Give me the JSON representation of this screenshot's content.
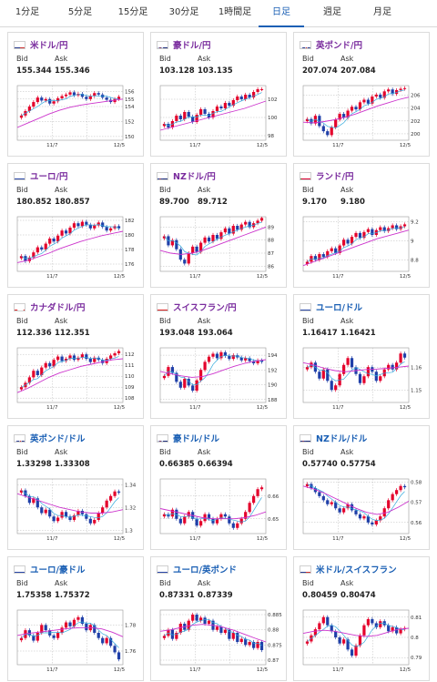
{
  "tabs": [
    {
      "label": "1分足",
      "active": false
    },
    {
      "label": "5分足",
      "active": false
    },
    {
      "label": "15分足",
      "active": false
    },
    {
      "label": "30分足",
      "active": false
    },
    {
      "label": "1時間足",
      "active": false
    },
    {
      "label": "日足",
      "active": true
    },
    {
      "label": "週足",
      "active": false
    },
    {
      "label": "月足",
      "active": false
    }
  ],
  "labels": {
    "bid": "Bid",
    "ask": "Ask"
  },
  "colors": {
    "accent": "#1a5fb4",
    "yen_pair_title": "#7a2c9e",
    "up_candle": "#e4002b",
    "down_candle": "#1f3fa8",
    "long_ma": "#cc33cc",
    "short_ma": "#33aadd"
  },
  "cards": [
    {
      "pair": "米ドル/円",
      "flag": "us",
      "bid": "155.344",
      "ask": "155.346",
      "chart_data": {
        "type": "candlestick",
        "x_labels": [
          "11/7",
          "12/5"
        ],
        "y_ticks": [
          "156",
          "155",
          "154",
          "152",
          "150"
        ],
        "ylim": [
          149.5,
          156.8
        ],
        "closes": [
          152.8,
          153.4,
          154.0,
          154.6,
          155.2,
          154.8,
          155.0,
          154.4,
          154.7,
          155.1,
          155.4,
          155.6,
          155.9,
          155.5,
          155.7,
          155.3,
          155.0,
          155.4,
          155.8,
          155.6,
          155.2,
          154.9,
          154.6,
          155.0,
          155.3
        ],
        "long_ma": [
          151.2,
          151.8,
          152.4,
          153.0,
          153.5,
          153.9,
          154.2,
          154.4,
          154.6,
          154.8,
          155.0
        ]
      }
    },
    {
      "pair": "豪ドル/円",
      "flag": "au",
      "bid": "103.128",
      "ask": "103.135",
      "chart_data": {
        "type": "candlestick",
        "x_labels": [
          "11/7",
          "12/5"
        ],
        "y_ticks": [
          "102",
          "100",
          "98"
        ],
        "ylim": [
          97.5,
          103.5
        ],
        "closes": [
          99.3,
          98.9,
          99.6,
          100.2,
          99.8,
          100.6,
          100.1,
          99.5,
          100.3,
          100.9,
          100.4,
          100.0,
          100.7,
          101.2,
          101.0,
          101.6,
          101.3,
          101.9,
          102.3,
          102.0,
          102.5,
          102.2,
          102.8,
          103.1,
          103.1
        ],
        "long_ma": [
          98.6,
          98.9,
          99.2,
          99.5,
          99.8,
          100.1,
          100.4,
          100.7,
          101.0,
          101.4,
          101.8
        ]
      }
    },
    {
      "pair": "英ポンド/円",
      "flag": "gb",
      "bid": "207.074",
      "ask": "207.084",
      "chart_data": {
        "type": "candlestick",
        "x_labels": [
          "11/7",
          "12/5"
        ],
        "y_ticks": [
          "206",
          "204",
          "202",
          "200"
        ],
        "ylim": [
          199.0,
          207.5
        ],
        "closes": [
          202.3,
          201.6,
          202.8,
          201.2,
          200.4,
          199.8,
          201.0,
          202.2,
          203.1,
          202.5,
          203.6,
          204.2,
          203.8,
          204.9,
          205.3,
          204.7,
          205.8,
          206.1,
          205.6,
          206.6,
          206.9,
          206.2,
          206.8,
          207.0,
          207.1
        ],
        "long_ma": [
          201.8,
          201.7,
          201.9,
          202.2,
          202.6,
          203.1,
          203.7,
          204.3,
          204.8,
          205.3,
          205.7
        ]
      }
    },
    {
      "pair": "ユーロ/円",
      "flag": "eu",
      "bid": "180.852",
      "ask": "180.857",
      "chart_data": {
        "type": "candlestick",
        "x_labels": [
          "11/7",
          "12/5"
        ],
        "y_ticks": [
          "182",
          "180",
          "178",
          "176"
        ],
        "ylim": [
          175.0,
          182.5
        ],
        "closes": [
          177.1,
          176.4,
          176.9,
          177.6,
          178.3,
          178.0,
          178.8,
          179.5,
          179.1,
          179.9,
          180.6,
          180.2,
          181.0,
          181.6,
          181.2,
          181.8,
          181.4,
          180.9,
          181.3,
          181.7,
          181.1,
          180.6,
          180.9,
          181.2,
          180.9
        ],
        "long_ma": [
          176.2,
          176.5,
          177.0,
          177.5,
          178.1,
          178.6,
          179.1,
          179.5,
          179.9,
          180.2,
          180.5
        ]
      }
    },
    {
      "pair": "NZドル/円",
      "flag": "nz",
      "bid": "89.700",
      "ask": "89.712",
      "chart_data": {
        "type": "candlestick",
        "x_labels": [
          "11/7",
          "12/5"
        ],
        "y_ticks": [
          "89",
          "88",
          "87",
          "86"
        ],
        "ylim": [
          85.6,
          89.8
        ],
        "closes": [
          88.3,
          87.6,
          88.0,
          87.3,
          86.5,
          86.2,
          87.0,
          87.5,
          87.1,
          87.8,
          88.2,
          87.9,
          88.4,
          88.1,
          88.6,
          88.9,
          88.5,
          89.1,
          88.8,
          89.2,
          89.4,
          89.0,
          89.3,
          89.5,
          89.7
        ],
        "long_ma": [
          87.2,
          87.0,
          86.9,
          87.0,
          87.2,
          87.5,
          87.8,
          88.1,
          88.4,
          88.7,
          89.0
        ]
      }
    },
    {
      "pair": "ランド/円",
      "flag": "za",
      "bid": "9.170",
      "ask": "9.180",
      "chart_data": {
        "type": "candlestick",
        "x_labels": [
          "11/7",
          "12/5"
        ],
        "y_ticks": [
          "9.2",
          "9",
          "8.8"
        ],
        "ylim": [
          8.68,
          9.25
        ],
        "closes": [
          8.78,
          8.84,
          8.8,
          8.86,
          8.83,
          8.89,
          8.92,
          8.87,
          8.95,
          9.01,
          8.97,
          9.04,
          9.08,
          9.03,
          9.09,
          9.12,
          9.06,
          9.11,
          9.14,
          9.1,
          9.13,
          9.16,
          9.12,
          9.15,
          9.17
        ],
        "long_ma": [
          8.74,
          8.78,
          8.82,
          8.86,
          8.9,
          8.94,
          8.98,
          9.02,
          9.05,
          9.08,
          9.11
        ]
      }
    },
    {
      "pair": "カナダドル/円",
      "flag": "ca",
      "bid": "112.336",
      "ask": "112.351",
      "chart_data": {
        "type": "candlestick",
        "x_labels": [
          "11/7",
          "12/5"
        ],
        "y_ticks": [
          "112",
          "111",
          "110",
          "109",
          "108"
        ],
        "ylim": [
          107.6,
          112.6
        ],
        "closes": [
          109.0,
          109.4,
          109.9,
          110.5,
          110.1,
          110.8,
          111.2,
          110.9,
          111.5,
          111.8,
          111.4,
          111.6,
          111.9,
          111.5,
          111.7,
          112.0,
          111.6,
          111.3,
          111.7,
          111.5,
          111.2,
          111.6,
          111.9,
          112.1,
          112.3
        ],
        "long_ma": [
          108.5,
          108.9,
          109.4,
          109.9,
          110.3,
          110.6,
          110.9,
          111.1,
          111.3,
          111.5,
          111.6
        ]
      }
    },
    {
      "pair": "スイスフラン/円",
      "flag": "ch",
      "bid": "193.048",
      "ask": "193.064",
      "chart_data": {
        "type": "candlestick",
        "x_labels": [
          "11/7",
          "12/5"
        ],
        "y_ticks": [
          "194",
          "192",
          "190",
          "188"
        ],
        "ylim": [
          187.6,
          195.0
        ],
        "closes": [
          191.2,
          192.4,
          191.6,
          190.4,
          189.6,
          190.8,
          189.9,
          189.2,
          190.6,
          192.0,
          193.1,
          193.8,
          194.2,
          193.6,
          194.4,
          193.9,
          193.5,
          194.0,
          193.7,
          193.3,
          193.6,
          193.2,
          192.9,
          193.3,
          193.1
        ],
        "long_ma": [
          191.8,
          191.5,
          191.2,
          191.0,
          191.1,
          191.5,
          192.0,
          192.5,
          192.9,
          193.2,
          193.4
        ]
      }
    },
    {
      "pair": "ユーロ/ドル",
      "flag": "eu_us",
      "bid": "1.16417",
      "ask": "1.16421",
      "chart_data": {
        "type": "candlestick",
        "x_labels": [
          "11/7",
          "12/5"
        ],
        "y_ticks": [
          "1.16",
          "1.15"
        ],
        "ylim": [
          1.1445,
          1.1685
        ],
        "closes": [
          1.16,
          1.162,
          1.158,
          1.155,
          1.159,
          1.154,
          1.15,
          1.152,
          1.157,
          1.161,
          1.164,
          1.16,
          1.157,
          1.153,
          1.156,
          1.16,
          1.158,
          1.154,
          1.156,
          1.159,
          1.161,
          1.159,
          1.162,
          1.166,
          1.1642
        ],
        "long_ma": [
          1.162,
          1.161,
          1.1595,
          1.1585,
          1.158,
          1.1585,
          1.159,
          1.1592,
          1.1595,
          1.16,
          1.1605
        ]
      }
    },
    {
      "pair": "英ポンド/ドル",
      "flag": "gb_us",
      "bid": "1.33298",
      "ask": "1.33308",
      "chart_data": {
        "type": "candlestick",
        "x_labels": [
          "11/7",
          "12/5"
        ],
        "y_ticks": [
          "1.34",
          "1.32",
          "1.3"
        ],
        "ylim": [
          1.297,
          1.345
        ],
        "closes": [
          1.335,
          1.33,
          1.324,
          1.328,
          1.32,
          1.315,
          1.318,
          1.312,
          1.308,
          1.311,
          1.316,
          1.312,
          1.309,
          1.313,
          1.317,
          1.314,
          1.31,
          1.306,
          1.309,
          1.315,
          1.32,
          1.326,
          1.33,
          1.334,
          1.333
        ],
        "long_ma": [
          1.332,
          1.329,
          1.326,
          1.323,
          1.32,
          1.318,
          1.316,
          1.315,
          1.315,
          1.316,
          1.318
        ]
      }
    },
    {
      "pair": "豪ドル/ドル",
      "flag": "au_us",
      "bid": "0.66385",
      "ask": "0.66394",
      "chart_data": {
        "type": "candlestick",
        "x_labels": [
          "11/7",
          "12/5"
        ],
        "y_ticks": [
          "0.66",
          "0.65"
        ],
        "ylim": [
          0.6435,
          0.6675
        ],
        "closes": [
          0.652,
          0.651,
          0.654,
          0.65,
          0.648,
          0.651,
          0.653,
          0.65,
          0.647,
          0.649,
          0.652,
          0.65,
          0.648,
          0.65,
          0.652,
          0.651,
          0.648,
          0.646,
          0.648,
          0.65,
          0.653,
          0.657,
          0.66,
          0.663,
          0.6638
        ],
        "long_ma": [
          0.6545,
          0.6535,
          0.6525,
          0.6515,
          0.6505,
          0.65,
          0.65,
          0.65,
          0.6505,
          0.6515,
          0.653
        ]
      }
    },
    {
      "pair": "NZドル/ドル",
      "flag": "nz_us",
      "bid": "0.57740",
      "ask": "0.57754",
      "chart_data": {
        "type": "candlestick",
        "x_labels": [
          "11/7",
          "12/5"
        ],
        "y_ticks": [
          "0.58",
          "0.57",
          "0.56"
        ],
        "ylim": [
          0.5545,
          0.5815
        ],
        "closes": [
          0.579,
          0.577,
          0.575,
          0.573,
          0.571,
          0.569,
          0.57,
          0.567,
          0.565,
          0.567,
          0.569,
          0.566,
          0.564,
          0.562,
          0.563,
          0.56,
          0.559,
          0.561,
          0.563,
          0.567,
          0.571,
          0.574,
          0.576,
          0.578,
          0.5774
        ],
        "long_ma": [
          0.578,
          0.5765,
          0.5745,
          0.572,
          0.5695,
          0.567,
          0.565,
          0.564,
          0.565,
          0.5675,
          0.5705
        ]
      }
    },
    {
      "pair": "ユーロ/豪ドル",
      "flag": "eu_au",
      "bid": "1.75358",
      "ask": "1.75372",
      "chart_data": {
        "type": "candlestick",
        "x_labels": [
          "11/7",
          "12/5"
        ],
        "y_ticks": [
          "1.78",
          "1.76"
        ],
        "ylim": [
          1.7495,
          1.7915
        ],
        "closes": [
          1.77,
          1.776,
          1.772,
          1.768,
          1.774,
          1.78,
          1.776,
          1.772,
          1.77,
          1.774,
          1.778,
          1.782,
          1.779,
          1.784,
          1.786,
          1.781,
          1.776,
          1.78,
          1.774,
          1.77,
          1.766,
          1.77,
          1.764,
          1.759,
          1.7536
        ],
        "long_ma": [
          1.772,
          1.7735,
          1.7745,
          1.7755,
          1.7765,
          1.7775,
          1.778,
          1.778,
          1.777,
          1.7745,
          1.771
        ]
      }
    },
    {
      "pair": "ユーロ/英ポンド",
      "flag": "eu_gb",
      "bid": "0.87331",
      "ask": "0.87339",
      "chart_data": {
        "type": "candlestick",
        "x_labels": [
          "11/7",
          "12/5"
        ],
        "y_ticks": [
          "0.885",
          "0.88",
          "0.875",
          "0.87"
        ],
        "ylim": [
          0.8685,
          0.8865
        ],
        "closes": [
          0.878,
          0.88,
          0.877,
          0.879,
          0.882,
          0.88,
          0.883,
          0.885,
          0.883,
          0.884,
          0.882,
          0.883,
          0.88,
          0.881,
          0.879,
          0.88,
          0.877,
          0.879,
          0.876,
          0.877,
          0.875,
          0.876,
          0.874,
          0.876,
          0.8733
        ],
        "long_ma": [
          0.8795,
          0.88,
          0.8808,
          0.8815,
          0.8818,
          0.8815,
          0.8808,
          0.8798,
          0.8785,
          0.8772,
          0.876
        ]
      }
    },
    {
      "pair": "米ドル/スイスフラン",
      "flag": "us_ch",
      "bid": "0.80459",
      "ask": "0.80474",
      "chart_data": {
        "type": "candlestick",
        "x_labels": [
          "11/7",
          "12/5"
        ],
        "y_ticks": [
          "0.81",
          "0.8",
          "0.79"
        ],
        "ylim": [
          0.7865,
          0.8135
        ],
        "closes": [
          0.798,
          0.801,
          0.804,
          0.807,
          0.81,
          0.806,
          0.803,
          0.8,
          0.797,
          0.799,
          0.794,
          0.791,
          0.796,
          0.801,
          0.806,
          0.809,
          0.807,
          0.805,
          0.808,
          0.806,
          0.803,
          0.805,
          0.802,
          0.804,
          0.8046
        ],
        "long_ma": [
          0.802,
          0.803,
          0.8035,
          0.803,
          0.802,
          0.801,
          0.8005,
          0.801,
          0.8025,
          0.804,
          0.8045
        ]
      }
    }
  ]
}
